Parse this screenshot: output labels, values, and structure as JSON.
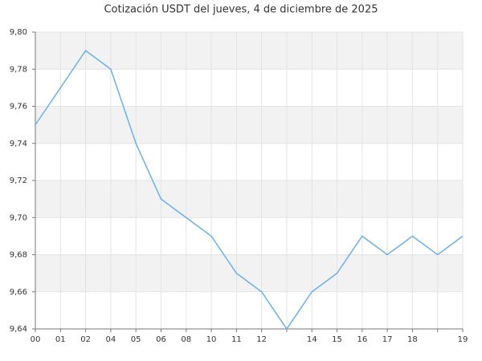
{
  "chart_data": {
    "type": "line",
    "title": "Cotización USDT del jueves, 4 de diciembre de 2025",
    "categories": [
      "00",
      "01",
      "02",
      "04",
      "05",
      "06",
      "08",
      "10",
      "11",
      "12",
      null,
      "14",
      "15",
      "16",
      "17",
      "18",
      null,
      "19"
    ],
    "series": [
      {
        "name": "USDT",
        "color": "#66b0f2",
        "values": [
          9.75,
          9.77,
          9.79,
          9.78,
          9.74,
          9.71,
          9.7,
          9.69,
          9.67,
          9.66,
          9.64,
          9.66,
          9.67,
          9.69,
          9.68,
          9.69,
          9.68,
          9.69
        ]
      }
    ],
    "ylim": [
      9.64,
      9.8
    ],
    "yticks": [
      {
        "value": 9.64,
        "label": "9,64"
      },
      {
        "value": 9.66,
        "label": "9,66"
      },
      {
        "value": 9.68,
        "label": "9,68"
      },
      {
        "value": 9.7,
        "label": "9,70"
      },
      {
        "value": 9.72,
        "label": "9,72"
      },
      {
        "value": 9.74,
        "label": "9,74"
      },
      {
        "value": 9.76,
        "label": "9,76"
      },
      {
        "value": 9.78,
        "label": "9,78"
      },
      {
        "value": 9.8,
        "label": "9,80"
      }
    ],
    "grid": true
  }
}
